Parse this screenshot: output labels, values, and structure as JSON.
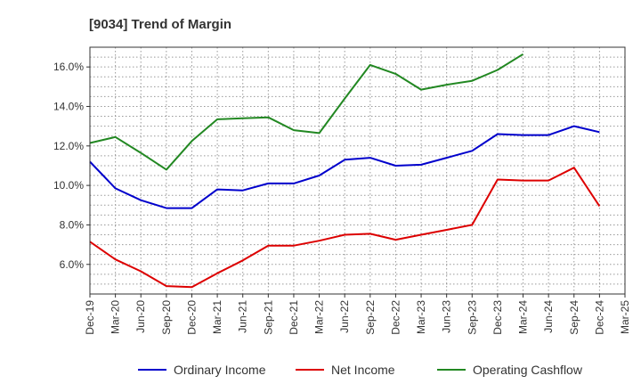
{
  "chart_data": {
    "type": "line",
    "title": "[9034]  Trend of Margin",
    "xlabel": "",
    "ylabel": "",
    "x": [
      "Dec-19",
      "Mar-20",
      "Jun-20",
      "Sep-20",
      "Dec-20",
      "Mar-21",
      "Jun-21",
      "Sep-21",
      "Dec-21",
      "Mar-22",
      "Jun-22",
      "Sep-22",
      "Dec-22",
      "Mar-23",
      "Jun-23",
      "Sep-23",
      "Dec-23",
      "Mar-24",
      "Jun-24",
      "Sep-24",
      "Dec-24",
      "Mar-25"
    ],
    "ylim": [
      4.5,
      17.0
    ],
    "yticks": [
      6.0,
      8.0,
      10.0,
      12.0,
      14.0,
      16.0
    ],
    "ytick_labels": [
      "6.0%",
      "8.0%",
      "10.0%",
      "12.0%",
      "14.0%",
      "16.0%"
    ],
    "grid": true,
    "legend_position": "bottom",
    "series": [
      {
        "name": "Ordinary Income",
        "color": "#0000cc",
        "values": [
          11.2,
          9.85,
          9.25,
          8.85,
          8.85,
          9.8,
          9.75,
          10.1,
          10.1,
          10.5,
          11.3,
          11.4,
          11.0,
          11.05,
          11.4,
          11.75,
          12.6,
          12.55,
          12.55,
          13.0,
          12.7,
          null
        ]
      },
      {
        "name": "Net Income",
        "color": "#dd0000",
        "values": [
          7.15,
          6.25,
          5.65,
          4.9,
          4.85,
          5.55,
          6.2,
          6.95,
          6.95,
          7.2,
          7.5,
          7.55,
          7.25,
          7.5,
          7.75,
          8.0,
          10.3,
          10.25,
          10.25,
          10.9,
          8.95,
          null
        ]
      },
      {
        "name": "Operating Cashflow",
        "color": "#228822",
        "values": [
          12.15,
          12.45,
          11.65,
          10.8,
          12.25,
          13.35,
          13.4,
          13.45,
          12.8,
          12.65,
          14.4,
          16.1,
          15.65,
          14.85,
          15.1,
          15.3,
          15.85,
          16.65,
          null,
          null,
          null,
          null
        ]
      }
    ]
  }
}
